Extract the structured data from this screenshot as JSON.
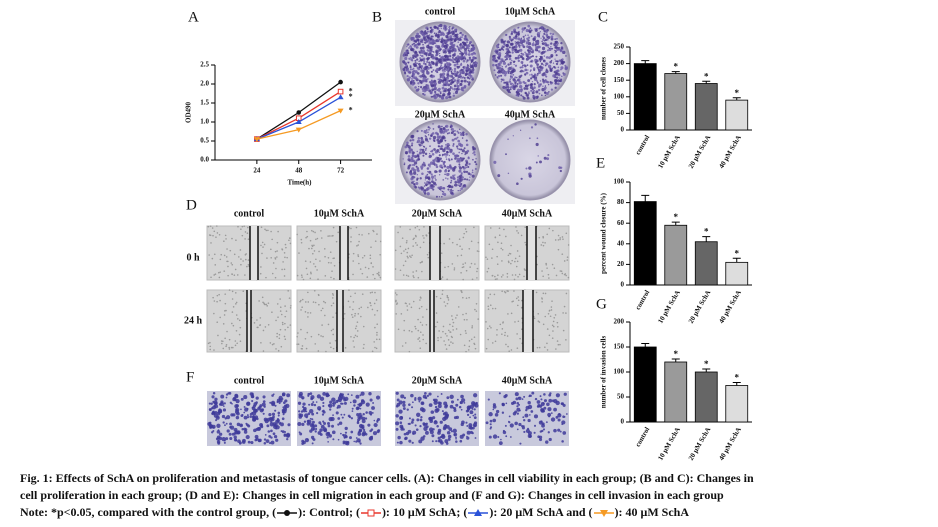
{
  "chart_data": [
    {
      "type": "line",
      "panel": "A",
      "x_label": "Time(h)",
      "y_label": "OD490",
      "x": [
        24,
        48,
        72
      ],
      "xlim": [
        0,
        90
      ],
      "xticks": [
        24,
        48,
        72
      ],
      "ylim": [
        0,
        2.5
      ],
      "yticks": [
        {
          "value": 0,
          "label": "0.0"
        },
        0.5,
        {
          "value": 1,
          "label": "1.0"
        },
        1.5,
        {
          "value": 2,
          "label": "2.0"
        },
        2.5
      ],
      "series": [
        {
          "name": "Control",
          "color": "#111111",
          "marker": "circle",
          "values": [
            0.55,
            1.25,
            2.05
          ]
        },
        {
          "name": "10 μM SchA",
          "color": "#e8372c",
          "marker": "square",
          "values": [
            0.55,
            1.1,
            1.8
          ],
          "significance": "*"
        },
        {
          "name": "20 μM SchA",
          "color": "#2a52d8",
          "marker": "triangle",
          "values": [
            0.55,
            1.0,
            1.65
          ],
          "significance": "*"
        },
        {
          "name": "40 μM SchA",
          "color": "#f59a23",
          "marker": "triangle-down",
          "values": [
            0.55,
            0.8,
            1.3
          ],
          "significance": "*"
        }
      ]
    },
    {
      "type": "bar",
      "panel": "C",
      "y_label": "number of cell clones",
      "categories": [
        "control",
        "10 μM SchA",
        "20 μM SchA",
        "40 μM SchA"
      ],
      "values": [
        200,
        170,
        140,
        90
      ],
      "errors": [
        9,
        6,
        7,
        7
      ],
      "colors": [
        "#000000",
        "#9a9a9a",
        "#666666",
        "#dddddd"
      ],
      "significance": [
        null,
        "*",
        "*",
        "*"
      ],
      "ylim": [
        0,
        250
      ],
      "yticks": [
        0,
        50,
        100,
        150,
        200,
        250
      ]
    },
    {
      "type": "bar",
      "panel": "E",
      "y_label": "percent wound closure (%)",
      "categories": [
        "control",
        "10 μM SchA",
        "20 μM SchA",
        "40 μM SchA"
      ],
      "values": [
        81,
        58,
        42,
        22
      ],
      "errors": [
        6,
        3,
        5,
        4
      ],
      "colors": [
        "#000000",
        "#9a9a9a",
        "#666666",
        "#dddddd"
      ],
      "significance": [
        null,
        "*",
        "*",
        "*"
      ],
      "ylim": [
        0,
        100
      ],
      "yticks": [
        0,
        20,
        40,
        60,
        80,
        100
      ]
    },
    {
      "type": "bar",
      "panel": "G",
      "y_label": "number of invasion cells",
      "categories": [
        "control",
        "10 μM SchA",
        "20 μM SchA",
        "40 μM SchA"
      ],
      "values": [
        150,
        120,
        100,
        73
      ],
      "errors": [
        7,
        6,
        6,
        6
      ],
      "colors": [
        "#000000",
        "#9a9a9a",
        "#666666",
        "#dddddd"
      ],
      "significance": [
        null,
        "*",
        "*",
        "*"
      ],
      "ylim": [
        0,
        200
      ],
      "yticks": [
        0,
        50,
        100,
        150,
        200
      ]
    }
  ],
  "panel_b": {
    "letter": "B",
    "labels": [
      "control",
      "10μM SchA",
      "20μM SchA",
      "40μM SchA"
    ]
  },
  "panel_d": {
    "letter": "D",
    "labels": [
      "control",
      "10μM SchA",
      "20μM SchA",
      "40μM SchA"
    ],
    "rows": [
      "0 h",
      "24 h"
    ]
  },
  "panel_f": {
    "letter": "F",
    "labels": [
      "control",
      "10μM SchA",
      "20μM SchA",
      "40μM SchA"
    ]
  },
  "caption": {
    "lines": [
      "Fig. 1: Effects of SchA on proliferation and metastasis of tongue cancer cells. (A): Changes in cell viability in each group; (B and C): Changes in",
      "cell proliferation in each group; (D and E): Changes in cell migration in each group and (F and G): Changes in cell invasion in each group"
    ],
    "note": [
      "Note: *p<0.05, compared with the control group, (",
      "): Control; (",
      "): 10 μM SchA; (",
      "): 20 μM SchA and (",
      "): 40 μM SchA"
    ]
  }
}
